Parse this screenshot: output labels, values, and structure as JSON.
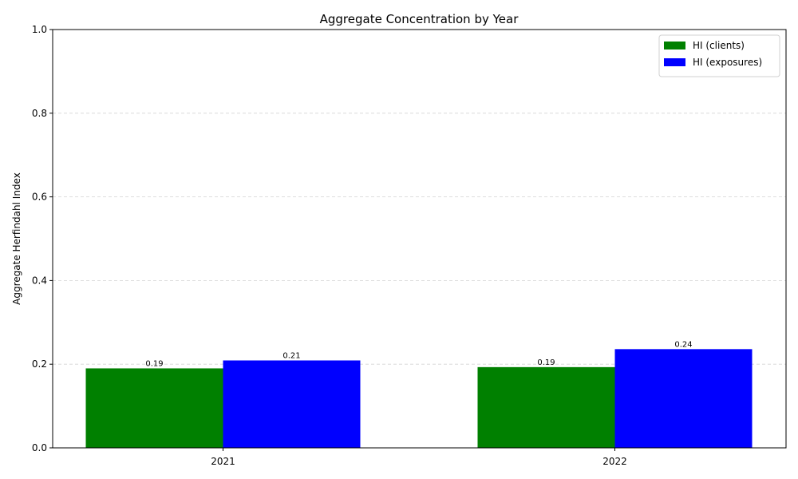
{
  "chart_data": {
    "type": "bar",
    "title": "Aggregate Concentration by Year",
    "xlabel": "",
    "ylabel": "Aggregate Herfindahl Index",
    "categories": [
      "2021",
      "2022"
    ],
    "series": [
      {
        "name": "HI (clients)",
        "color": "#008000",
        "values": [
          0.19,
          0.193
        ],
        "labels": [
          "0.19",
          "0.19"
        ]
      },
      {
        "name": "HI (exposures)",
        "color": "#0000ff",
        "values": [
          0.209,
          0.236
        ],
        "labels": [
          "0.21",
          "0.24"
        ]
      }
    ],
    "ylim": [
      0,
      1
    ],
    "yticks": [
      "0.0",
      "0.2",
      "0.4",
      "0.6",
      "0.8",
      "1.0"
    ],
    "grid": "y-dashed",
    "legend_position": "top-right"
  }
}
